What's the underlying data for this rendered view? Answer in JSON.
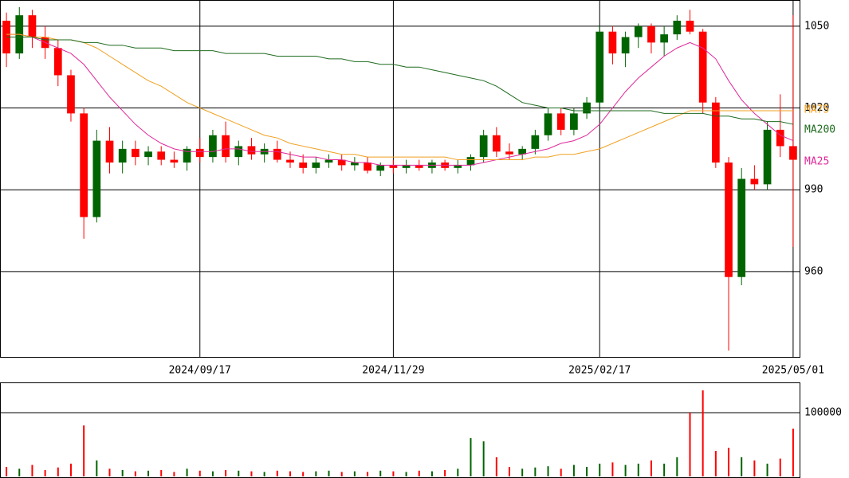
{
  "chart_data": {
    "type": "candlestick",
    "categories": [
      null,
      null,
      null,
      null,
      null,
      null,
      null,
      null,
      null,
      null,
      null,
      null,
      null,
      null,
      null,
      "2024/09/17",
      null,
      null,
      null,
      null,
      null,
      null,
      null,
      null,
      null,
      null,
      null,
      null,
      null,
      null,
      "2024/11/29",
      null,
      null,
      null,
      null,
      null,
      null,
      null,
      null,
      null,
      null,
      null,
      null,
      null,
      null,
      null,
      "2025/02/17",
      null,
      null,
      null,
      null,
      null,
      null,
      null,
      null,
      null,
      null,
      null,
      null,
      null,
      null,
      "2025/05/01"
    ],
    "open": [
      1052,
      1040,
      1054,
      1046,
      1042,
      1032,
      1018,
      980,
      1008,
      1000,
      1005,
      1002,
      1004,
      1001,
      1000,
      1005,
      1002,
      1010,
      1002,
      1006,
      1003,
      1005,
      1001,
      1000,
      998,
      1000,
      1001,
      999,
      1000,
      997,
      999,
      998,
      999,
      998,
      1000,
      998,
      999,
      1002,
      1010,
      1004,
      1003,
      1005,
      1010,
      1018,
      1012,
      1018,
      1022,
      1048,
      1040,
      1046,
      1050,
      1044,
      1047,
      1052,
      1048,
      1022,
      1000,
      958,
      994,
      992,
      1012,
      1006
    ],
    "high": [
      1055,
      1057,
      1056,
      1050,
      1045,
      1034,
      1020,
      1012,
      1013,
      1008,
      1008,
      1006,
      1006,
      1004,
      1006,
      1009,
      1012,
      1015,
      1008,
      1009,
      1007,
      1008,
      1004,
      1003,
      1002,
      1003,
      1003,
      1002,
      1002,
      1000,
      1001,
      1001,
      1001,
      1001,
      1001,
      1001,
      1003,
      1012,
      1013,
      1007,
      1006,
      1012,
      1020,
      1020,
      1020,
      1024,
      1050,
      1050,
      1048,
      1051,
      1051,
      1050,
      1054,
      1056,
      1049,
      1024,
      1002,
      998,
      999,
      1015,
      1025,
      1054
    ],
    "low": [
      1035,
      1038,
      1042,
      1038,
      1028,
      1015,
      972,
      978,
      996,
      996,
      999,
      999,
      999,
      998,
      997,
      1000,
      1000,
      1000,
      999,
      1001,
      1000,
      1000,
      998,
      996,
      996,
      998,
      997,
      997,
      996,
      995,
      996,
      996,
      997,
      996,
      997,
      996,
      997,
      1000,
      1002,
      1001,
      1001,
      1003,
      1008,
      1010,
      1010,
      1016,
      1020,
      1036,
      1035,
      1042,
      1040,
      1039,
      1045,
      1047,
      1018,
      998,
      931,
      955,
      990,
      990,
      1002,
      969
    ],
    "close": [
      1040,
      1054,
      1046,
      1042,
      1032,
      1018,
      980,
      1008,
      1000,
      1005,
      1002,
      1004,
      1001,
      1000,
      1005,
      1002,
      1010,
      1002,
      1006,
      1003,
      1005,
      1001,
      1000,
      998,
      1000,
      1001,
      999,
      1000,
      997,
      999,
      998,
      999,
      998,
      1000,
      998,
      999,
      1002,
      1010,
      1004,
      1003,
      1005,
      1010,
      1018,
      1012,
      1018,
      1022,
      1048,
      1040,
      1046,
      1050,
      1044,
      1047,
      1052,
      1048,
      1022,
      1000,
      958,
      994,
      992,
      1012,
      1006,
      1001
    ],
    "volume": [
      15000,
      12000,
      18000,
      10000,
      14000,
      20000,
      80000,
      25000,
      12000,
      10000,
      8000,
      9000,
      10000,
      7000,
      12000,
      9000,
      8000,
      10000,
      9000,
      8000,
      7000,
      9000,
      8000,
      7000,
      8000,
      9000,
      7000,
      8000,
      7000,
      9000,
      8000,
      7000,
      9000,
      8000,
      10000,
      12000,
      60000,
      55000,
      30000,
      15000,
      12000,
      14000,
      16000,
      12000,
      18000,
      15000,
      20000,
      22000,
      18000,
      20000,
      25000,
      20000,
      30000,
      100000,
      135000,
      40000,
      45000,
      30000,
      25000,
      20000,
      28000,
      75000
    ],
    "up_color": "#006400",
    "down_color": "#ff0000",
    "moving_averages": [
      {
        "name": "MA25",
        "color": "#e0289a",
        "values": [
          1047,
          1047,
          1046,
          1044,
          1042,
          1040,
          1036,
          1030,
          1024,
          1019,
          1014,
          1010,
          1007,
          1005,
          1004,
          1004,
          1004,
          1005,
          1005,
          1004,
          1004,
          1004,
          1003,
          1002,
          1002,
          1001,
          1001,
          1000,
          1000,
          999,
          999,
          999,
          999,
          999,
          999,
          999,
          999,
          1000,
          1001,
          1002,
          1003,
          1004,
          1005,
          1007,
          1008,
          1010,
          1014,
          1020,
          1026,
          1031,
          1035,
          1039,
          1042,
          1044,
          1042,
          1038,
          1030,
          1023,
          1018,
          1014,
          1010,
          1008
        ]
      },
      {
        "name": "MA75",
        "color": "#f0a020",
        "values": [
          1047,
          1047,
          1046,
          1046,
          1045,
          1045,
          1044,
          1042,
          1039,
          1036,
          1033,
          1030,
          1028,
          1025,
          1022,
          1020,
          1018,
          1016,
          1014,
          1012,
          1010,
          1009,
          1007,
          1006,
          1005,
          1004,
          1003,
          1003,
          1002,
          1002,
          1002,
          1002,
          1002,
          1002,
          1002,
          1001,
          1001,
          1001,
          1001,
          1001,
          1001,
          1002,
          1002,
          1003,
          1003,
          1004,
          1005,
          1007,
          1009,
          1011,
          1013,
          1015,
          1017,
          1019,
          1019,
          1019,
          1019,
          1019,
          1019,
          1019,
          1019,
          1019
        ]
      },
      {
        "name": "MA200",
        "color": "#1e6b1e",
        "values": [
          1046,
          1046,
          1046,
          1045,
          1045,
          1045,
          1044,
          1044,
          1043,
          1043,
          1042,
          1042,
          1042,
          1041,
          1041,
          1041,
          1041,
          1040,
          1040,
          1040,
          1040,
          1039,
          1039,
          1039,
          1039,
          1038,
          1038,
          1037,
          1037,
          1036,
          1036,
          1035,
          1035,
          1034,
          1033,
          1032,
          1031,
          1030,
          1028,
          1025,
          1022,
          1021,
          1020,
          1020,
          1019,
          1019,
          1019,
          1019,
          1019,
          1019,
          1019,
          1018,
          1018,
          1018,
          1018,
          1017,
          1017,
          1016,
          1016,
          1015,
          1015,
          1014
        ]
      }
    ],
    "ylim": [
      928.7,
      1059.6
    ],
    "yticks": [
      960,
      990,
      1020,
      1050
    ],
    "volume_ylim": [
      0,
      147500
    ],
    "volume_yticks": [
      100000
    ],
    "grid": true
  }
}
